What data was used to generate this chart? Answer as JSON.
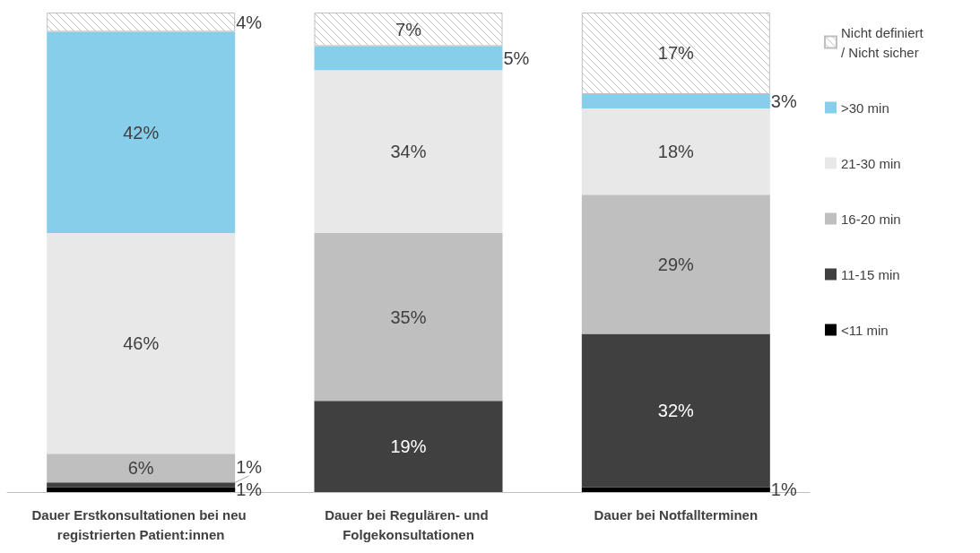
{
  "chart_data": {
    "type": "bar",
    "stacked": true,
    "legend": "right",
    "tick_labels": "x",
    "categories": [
      "Dauer Erstkonsultationen bei neu registrierten Patient:innen",
      "Dauer bei Regulären- und Folgekonsultationen",
      "Dauer bei Notfallterminen"
    ],
    "series": [
      {
        "name": "<11 min",
        "color": "#000000",
        "values": [
          1,
          null,
          1
        ],
        "value_labels": [
          "1%",
          null,
          "1%"
        ]
      },
      {
        "name": "11-15 min",
        "color": "#404040",
        "values": [
          1,
          19,
          32
        ],
        "value_labels": [
          "1%",
          "19%",
          "32%"
        ]
      },
      {
        "name": "16-20 min",
        "color": "#bfbfbf",
        "values": [
          6,
          35,
          29
        ],
        "value_labels": [
          "6%",
          "35%",
          "29%"
        ]
      },
      {
        "name": "21-30 min",
        "color": "#e8e8e8",
        "values": [
          46,
          34,
          18
        ],
        "value_labels": [
          "46%",
          "34%",
          "18%"
        ]
      },
      {
        "name": ">30 min",
        "color": "#87ceeb",
        "values": [
          42,
          5,
          3
        ],
        "value_labels": [
          "42%",
          "5%",
          "3%"
        ]
      },
      {
        "name": "Nicht definiert / Nicht sicher",
        "color": "#bfbfbf",
        "values": [
          4,
          7,
          17
        ],
        "value_labels": [
          "4%",
          "7%",
          "17%"
        ]
      }
    ]
  }
}
